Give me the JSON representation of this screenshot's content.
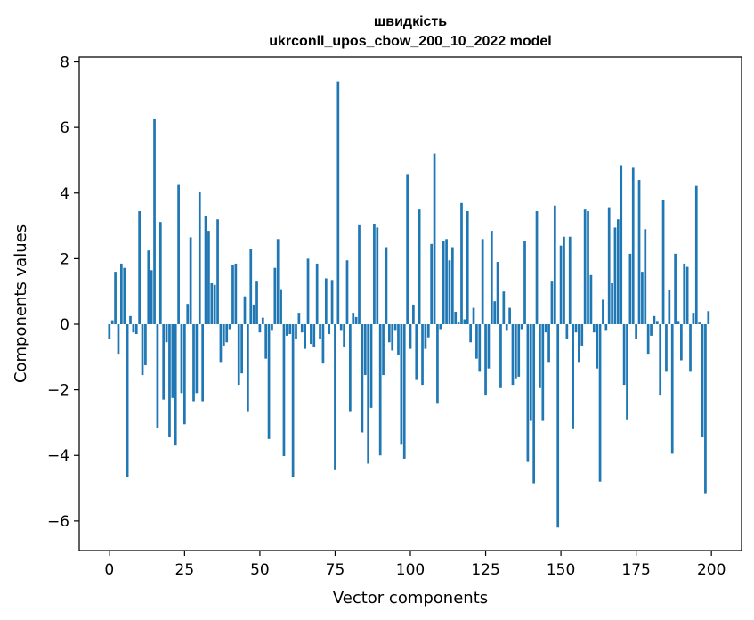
{
  "chart_data": {
    "type": "bar",
    "title": "швидкість",
    "subtitle": "ukrconll_upos_cbow_200_10_2022 model",
    "xlabel": "Vector components",
    "ylabel": "Components values",
    "xlim": [
      -10,
      210
    ],
    "ylim": [
      -6.9,
      8.15
    ],
    "xticks": [
      0,
      25,
      50,
      75,
      100,
      125,
      150,
      175,
      200
    ],
    "xtick_labels": [
      "0",
      "25",
      "50",
      "75",
      "100",
      "125",
      "150",
      "175",
      "200"
    ],
    "yticks": [
      -6,
      -4,
      -2,
      0,
      2,
      4,
      6,
      8
    ],
    "ytick_labels": [
      "−6",
      "−4",
      "−2",
      "0",
      "2",
      "4",
      "6",
      "8"
    ],
    "grid": false,
    "bar_color": "#1f77b4",
    "x": [
      0,
      1,
      2,
      3,
      4,
      5,
      6,
      7,
      8,
      9,
      10,
      11,
      12,
      13,
      14,
      15,
      16,
      17,
      18,
      19,
      20,
      21,
      22,
      23,
      24,
      25,
      26,
      27,
      28,
      29,
      30,
      31,
      32,
      33,
      34,
      35,
      36,
      37,
      38,
      39,
      40,
      41,
      42,
      43,
      44,
      45,
      46,
      47,
      48,
      49,
      50,
      51,
      52,
      53,
      54,
      55,
      56,
      57,
      58,
      59,
      60,
      61,
      62,
      63,
      64,
      65,
      66,
      67,
      68,
      69,
      70,
      71,
      72,
      73,
      74,
      75,
      76,
      77,
      78,
      79,
      80,
      81,
      82,
      83,
      84,
      85,
      86,
      87,
      88,
      89,
      90,
      91,
      92,
      93,
      94,
      95,
      96,
      97,
      98,
      99,
      100,
      101,
      102,
      103,
      104,
      105,
      106,
      107,
      108,
      109,
      110,
      111,
      112,
      113,
      114,
      115,
      116,
      117,
      118,
      119,
      120,
      121,
      122,
      123,
      124,
      125,
      126,
      127,
      128,
      129,
      130,
      131,
      132,
      133,
      134,
      135,
      136,
      137,
      138,
      139,
      140,
      141,
      142,
      143,
      144,
      145,
      146,
      147,
      148,
      149,
      150,
      151,
      152,
      153,
      154,
      155,
      156,
      157,
      158,
      159,
      160,
      161,
      162,
      163,
      164,
      165,
      166,
      167,
      168,
      169,
      170,
      171,
      172,
      173,
      174,
      175,
      176,
      177,
      178,
      179,
      180,
      181,
      182,
      183,
      184,
      185,
      186,
      187,
      188,
      189,
      190,
      191,
      192,
      193,
      194,
      195,
      196,
      197,
      198,
      199
    ],
    "values": [
      -0.45,
      0.12,
      1.6,
      -0.9,
      1.85,
      1.72,
      -4.65,
      0.25,
      -0.25,
      -0.3,
      3.45,
      -1.55,
      -1.25,
      2.25,
      1.65,
      6.25,
      -3.15,
      3.12,
      -2.3,
      -0.55,
      -3.45,
      -2.25,
      -3.7,
      4.25,
      -2.1,
      -3.05,
      0.62,
      2.65,
      -2.35,
      -2.1,
      4.05,
      -2.35,
      3.3,
      2.85,
      1.25,
      1.2,
      3.2,
      -1.15,
      -0.65,
      -0.55,
      -0.15,
      1.8,
      1.85,
      -1.85,
      -1.5,
      0.85,
      -2.65,
      2.3,
      0.6,
      1.3,
      -0.25,
      0.2,
      -1.05,
      -3.5,
      -0.2,
      1.72,
      2.6,
      1.07,
      -4.02,
      -0.35,
      -0.3,
      -4.65,
      -0.45,
      0.35,
      -0.25,
      -0.75,
      2.0,
      -0.6,
      -0.7,
      1.85,
      -0.45,
      -1.2,
      1.4,
      -0.3,
      1.35,
      -4.45,
      7.4,
      -0.2,
      -0.7,
      1.95,
      -2.65,
      0.35,
      0.22,
      3.02,
      -3.3,
      -1.55,
      -4.25,
      -2.55,
      3.05,
      2.95,
      -4.0,
      -1.55,
      2.35,
      -0.55,
      -0.8,
      -0.2,
      -0.95,
      -3.65,
      -4.1,
      4.58,
      -0.75,
      0.6,
      -1.7,
      3.5,
      -1.85,
      -0.75,
      -0.4,
      2.45,
      5.2,
      -2.4,
      -0.15,
      2.55,
      2.6,
      1.95,
      2.35,
      0.38,
      0.05,
      3.7,
      0.15,
      3.45,
      -0.55,
      0.5,
      -1.05,
      -1.45,
      2.6,
      -2.15,
      -1.35,
      2.85,
      0.7,
      1.9,
      -1.95,
      1.0,
      -0.2,
      0.5,
      -1.85,
      -1.65,
      -1.6,
      -0.15,
      2.55,
      -4.2,
      -2.95,
      -4.85,
      3.45,
      -1.95,
      -2.95,
      -0.25,
      -1.15,
      1.3,
      3.62,
      -6.2,
      2.4,
      2.67,
      -0.45,
      2.67,
      -3.2,
      -0.25,
      -1.15,
      -0.65,
      3.5,
      3.45,
      1.5,
      -0.25,
      -1.35,
      -4.8,
      0.75,
      -0.2,
      3.57,
      1.25,
      2.95,
      3.2,
      4.85,
      -1.85,
      -2.9,
      2.15,
      4.77,
      -0.45,
      4.4,
      1.6,
      2.9,
      -0.9,
      -0.35,
      0.25,
      0.1,
      -2.15,
      3.8,
      -1.45,
      1.05,
      -3.95,
      2.15,
      0.1,
      -1.1,
      1.85,
      1.75,
      -1.45,
      0.35,
      4.22,
      0.05,
      -3.45,
      -5.15,
      0.4
    ]
  }
}
